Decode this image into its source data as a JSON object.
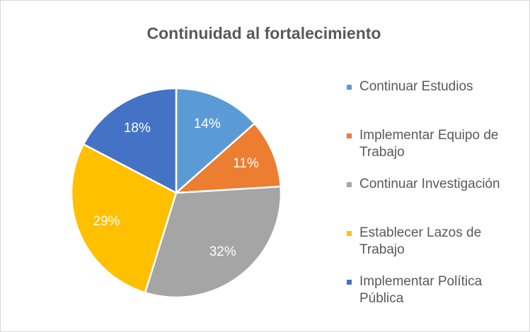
{
  "chart_data": {
    "type": "pie",
    "title": "Continuidad al fortalecimiento",
    "categories": [
      "Continuar Estudios",
      "Implementar Equipo de Trabajo",
      "Continuar Investigación",
      "Establecer Lazos de Trabajo",
      "Implementar Política Pública"
    ],
    "values": [
      14,
      11,
      32,
      29,
      18
    ],
    "value_labels": [
      "14%",
      "11%",
      "32%",
      "29%",
      "18%"
    ],
    "colors": [
      "#5b9bd5",
      "#ed7d31",
      "#a5a5a5",
      "#ffc000",
      "#4472c4"
    ],
    "legend": "right"
  }
}
